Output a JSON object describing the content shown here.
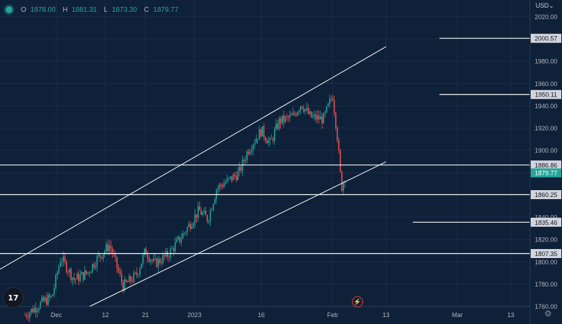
{
  "header": {
    "ohlc": [
      {
        "key": "O",
        "value": "1878.00"
      },
      {
        "key": "H",
        "value": "1881.31"
      },
      {
        "key": "L",
        "value": "1873.30"
      },
      {
        "key": "C",
        "value": "1879.77"
      }
    ],
    "currency": "USD"
  },
  "colors": {
    "background": "#0f2139",
    "up": "#26a69a",
    "down": "#ef5350",
    "line": "#ffffff",
    "axis_text": "#b2b5be",
    "current_price_bg": "#26a69a"
  },
  "icons": {
    "logo": "tradingview-logo-icon",
    "flash": "flash-event-icon",
    "settings": "gear-icon",
    "dropdown": "chevron-down-icon"
  },
  "logo_text": "17",
  "chart_data": {
    "type": "candlestick",
    "y_axis": {
      "ticks": [
        2020,
        2000,
        1980,
        1960,
        1940,
        1920,
        1900,
        1880,
        1860,
        1840,
        1820,
        1800,
        1780,
        1760
      ],
      "tick_labels": [
        "2020.00",
        "2000.00",
        "1980.00",
        "1960.00",
        "1940.00",
        "1920.00",
        "1900.00",
        "1880.00",
        "1860.00",
        "1840.00",
        "1820.00",
        "1800.00",
        "1780.00",
        "1760.00"
      ],
      "range": [
        1757,
        2026
      ]
    },
    "x_axis": {
      "ticks": [
        {
          "label": "Dec",
          "date": "2022-12-01"
        },
        {
          "label": "12",
          "date": "2022-12-12"
        },
        {
          "label": "21",
          "date": "2022-12-21"
        },
        {
          "label": "2023",
          "date": "2023-01-01"
        },
        {
          "label": "16",
          "date": "2023-01-16"
        },
        {
          "label": "Feb",
          "date": "2023-02-01"
        },
        {
          "label": "13",
          "date": "2023-02-13"
        },
        {
          "label": "Mar",
          "date": "2023-03-01"
        },
        {
          "label": "13",
          "date": "2023-03-13"
        }
      ]
    },
    "price_trend": [
      {
        "date": "2022-11-24",
        "price": 1752
      },
      {
        "date": "2022-11-28",
        "price": 1764
      },
      {
        "date": "2022-11-30",
        "price": 1768
      },
      {
        "date": "2022-12-02",
        "price": 1804
      },
      {
        "date": "2022-12-05",
        "price": 1784
      },
      {
        "date": "2022-12-08",
        "price": 1790
      },
      {
        "date": "2022-12-10",
        "price": 1802
      },
      {
        "date": "2022-12-13",
        "price": 1815
      },
      {
        "date": "2022-12-16",
        "price": 1778
      },
      {
        "date": "2022-12-19",
        "price": 1788
      },
      {
        "date": "2022-12-21",
        "price": 1810
      },
      {
        "date": "2022-12-23",
        "price": 1798
      },
      {
        "date": "2022-12-26",
        "price": 1806
      },
      {
        "date": "2022-12-29",
        "price": 1822
      },
      {
        "date": "2023-01-02",
        "price": 1846
      },
      {
        "date": "2023-01-04",
        "price": 1838
      },
      {
        "date": "2023-01-06",
        "price": 1866
      },
      {
        "date": "2023-01-09",
        "price": 1874
      },
      {
        "date": "2023-01-11",
        "price": 1880
      },
      {
        "date": "2023-01-13",
        "price": 1900
      },
      {
        "date": "2023-01-16",
        "price": 1918
      },
      {
        "date": "2023-01-18",
        "price": 1906
      },
      {
        "date": "2023-01-20",
        "price": 1926
      },
      {
        "date": "2023-01-23",
        "price": 1930
      },
      {
        "date": "2023-01-25",
        "price": 1942
      },
      {
        "date": "2023-01-27",
        "price": 1930
      },
      {
        "date": "2023-01-30",
        "price": 1928
      },
      {
        "date": "2023-02-01",
        "price": 1950
      },
      {
        "date": "2023-02-02",
        "price": 1916
      },
      {
        "date": "2023-02-03",
        "price": 1866
      },
      {
        "date": "2023-02-04",
        "price": 1880
      }
    ],
    "horizontal_levels": [
      {
        "value": 2000.57,
        "label": "2000.57",
        "start_date": "2023-02-25"
      },
      {
        "value": 1950.11,
        "label": "1950.11",
        "start_date": "2023-02-25"
      },
      {
        "value": 1886.86,
        "label": "1886.86",
        "start_date": null
      },
      {
        "value": 1860.25,
        "label": "1860.25",
        "start_date": null
      },
      {
        "value": 1835.46,
        "label": "1835.46",
        "start_date": "2023-02-19"
      },
      {
        "value": 1807.35,
        "label": "1807.35",
        "start_date": null
      }
    ],
    "channel_lines": [
      {
        "name": "upper",
        "points": [
          {
            "date": "2022-11-21",
            "y": 1799.4
          },
          {
            "date": "2023-02-13",
            "y": 1993.0
          }
        ]
      },
      {
        "name": "lower",
        "points": [
          {
            "date": "2022-12-07",
            "y": 1757.0
          },
          {
            "date": "2023-02-13",
            "y": 1889.7
          }
        ]
      }
    ],
    "current_price": {
      "value": 1879.77,
      "label": "1879.77"
    }
  }
}
